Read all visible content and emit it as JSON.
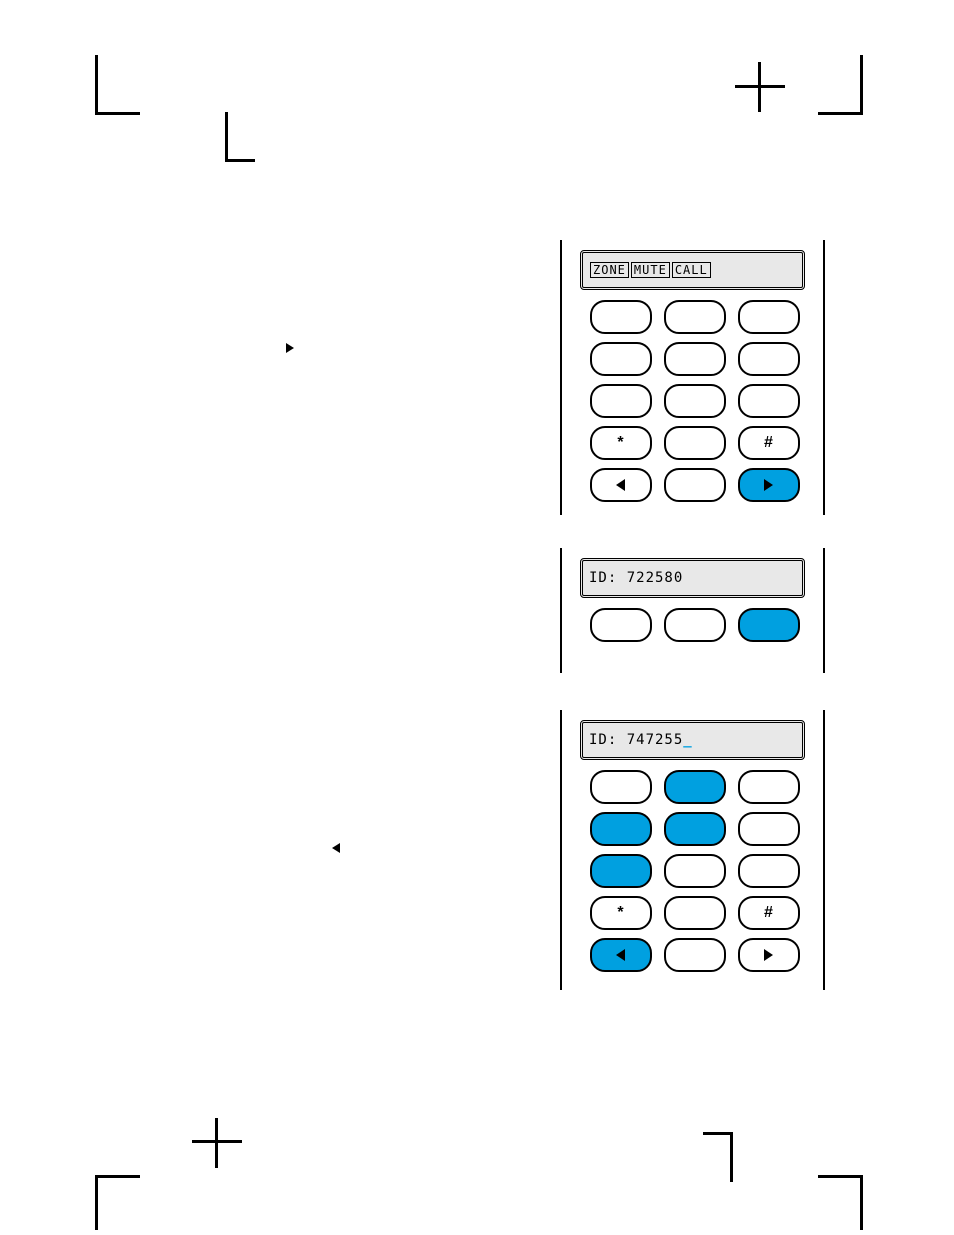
{
  "accent": "#00a0e0",
  "lcd_bg": "#e8e8e8",
  "top": {
    "lcd_words": [
      "ZONE",
      "MUTE",
      "CALL"
    ],
    "keys": [
      {
        "label": "",
        "sel": false
      },
      {
        "label": "",
        "sel": false
      },
      {
        "label": "",
        "sel": false
      },
      {
        "label": "",
        "sel": false
      },
      {
        "label": "",
        "sel": false
      },
      {
        "label": "",
        "sel": false
      },
      {
        "label": "",
        "sel": false
      },
      {
        "label": "",
        "sel": false
      },
      {
        "label": "",
        "sel": false
      },
      {
        "label": "*",
        "sel": false
      },
      {
        "label": "",
        "sel": false
      },
      {
        "label": "#",
        "sel": false
      },
      {
        "label": "◀",
        "sel": false,
        "arrow": "l"
      },
      {
        "label": "",
        "sel": false
      },
      {
        "label": "▶",
        "sel": true,
        "arrow": "r"
      }
    ]
  },
  "mid": {
    "lcd": "ID: 722580",
    "keys": [
      {
        "label": "",
        "sel": false
      },
      {
        "label": "",
        "sel": false
      },
      {
        "label": "",
        "sel": true
      }
    ]
  },
  "bot": {
    "lcd": "ID: 747255",
    "cursor": "_",
    "keys": [
      {
        "label": "",
        "sel": false
      },
      {
        "label": "",
        "sel": true
      },
      {
        "label": "",
        "sel": false
      },
      {
        "label": "",
        "sel": true
      },
      {
        "label": "",
        "sel": true
      },
      {
        "label": "",
        "sel": false
      },
      {
        "label": "",
        "sel": true
      },
      {
        "label": "",
        "sel": false
      },
      {
        "label": "",
        "sel": false
      },
      {
        "label": "*",
        "sel": false
      },
      {
        "label": "",
        "sel": false
      },
      {
        "label": "#",
        "sel": false
      },
      {
        "label": "◀",
        "sel": true,
        "arrow": "l"
      },
      {
        "label": "",
        "sel": false
      },
      {
        "label": "▶",
        "sel": false,
        "arrow": "r"
      }
    ]
  }
}
